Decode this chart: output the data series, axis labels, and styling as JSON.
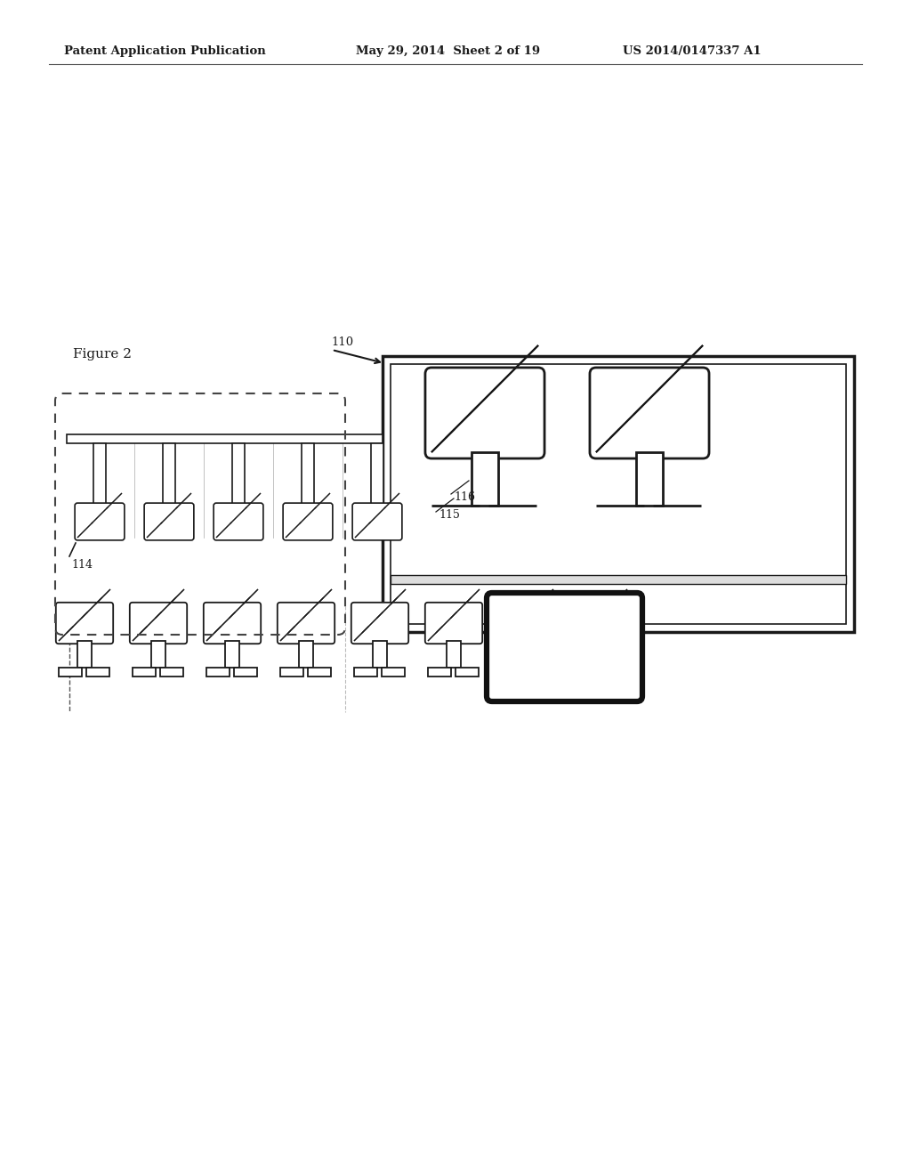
{
  "bg_color": "#ffffff",
  "text_color": "#000000",
  "header_left": "Patent Application Publication",
  "header_center": "May 29, 2014  Sheet 2 of 19",
  "header_right": "US 2014/0147337 A1",
  "figure_label": "Figure 2",
  "label_110": "110",
  "label_114": "114",
  "label_115": "115",
  "label_116": "116",
  "line_color": "#1a1a1a"
}
